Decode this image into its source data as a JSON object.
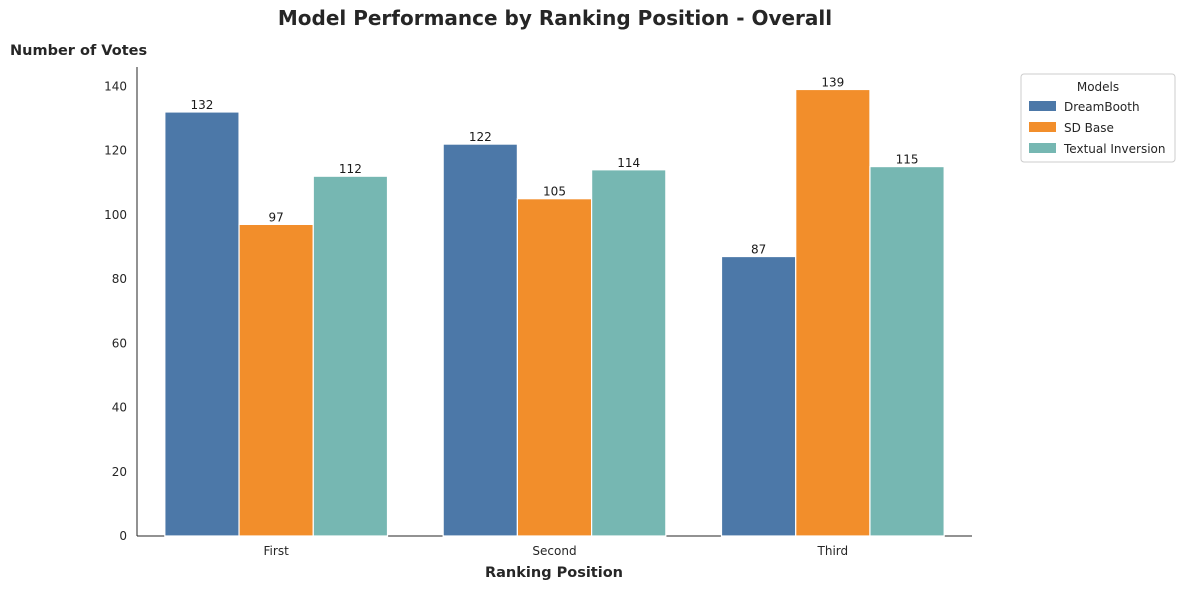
{
  "chart_data": {
    "type": "bar",
    "title": "Model Performance by Ranking Position - Overall",
    "xlabel": "Ranking Position",
    "ylabel": "Number of Votes",
    "categories": [
      "First",
      "Second",
      "Third"
    ],
    "series": [
      {
        "name": "DreamBooth",
        "values": [
          132,
          122,
          87
        ],
        "color": "#4c78a8"
      },
      {
        "name": "SD Base",
        "values": [
          97,
          105,
          139
        ],
        "color": "#f28e2b"
      },
      {
        "name": "Textual Inversion",
        "values": [
          112,
          114,
          115
        ],
        "color": "#76b7b2"
      }
    ],
    "ylim": [
      0,
      146
    ],
    "yticks": [
      0,
      20,
      40,
      60,
      80,
      100,
      120,
      140
    ],
    "legend": {
      "title": "Models",
      "placement": "outside-top-right"
    },
    "grid": false
  }
}
